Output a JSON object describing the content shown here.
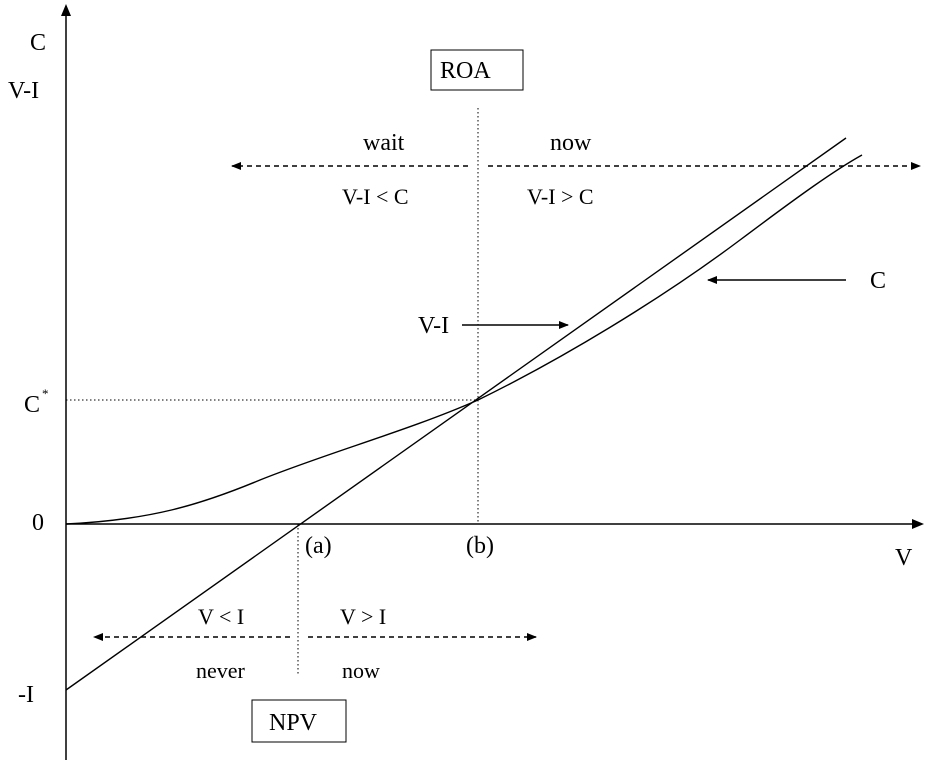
{
  "axes": {
    "y_label_top": "C",
    "y_label_bottom": "V-I",
    "x_label": "V",
    "origin_label": "0",
    "neg_i_label": "-I",
    "c_star_label": "C",
    "c_star_superscript": "*"
  },
  "points": {
    "a_label": "(a)",
    "b_label": "(b)"
  },
  "roa": {
    "box_label": "ROA",
    "left_top": "wait",
    "right_top": "now",
    "left_bottom": "V-I < C",
    "right_bottom": "V-I > C"
  },
  "npv": {
    "box_label": "NPV",
    "left_top": "V < I",
    "right_top": "V > I",
    "left_bottom": "never",
    "right_bottom": "now"
  },
  "curves": {
    "vi_label": "V-I",
    "c_label": "C"
  }
}
